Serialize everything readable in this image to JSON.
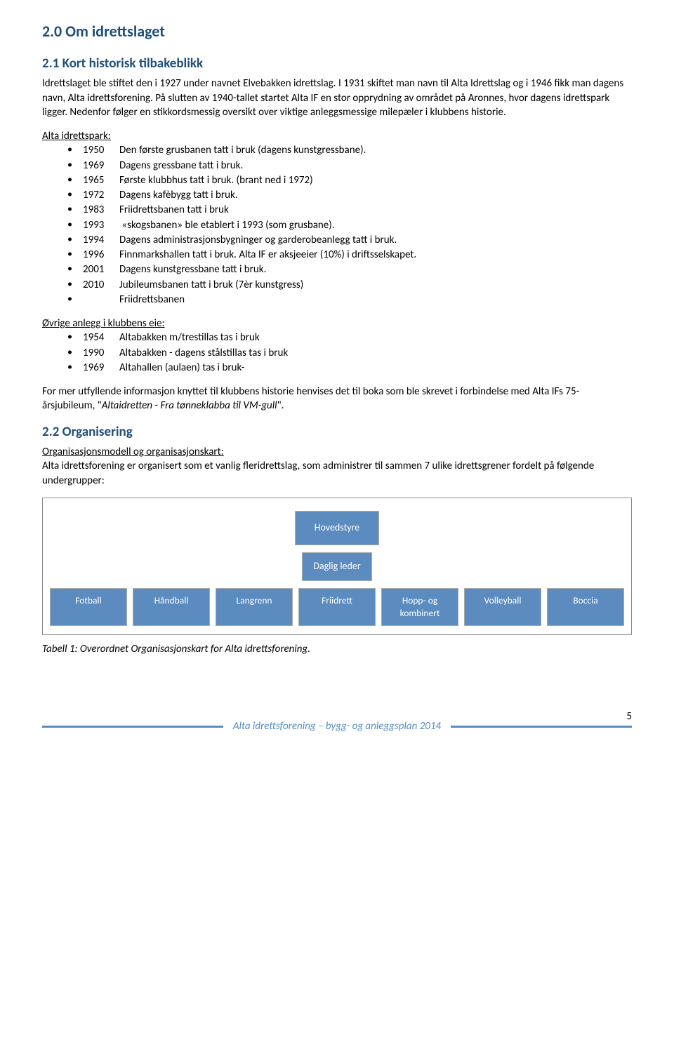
{
  "colors": {
    "heading": "#1f4e79",
    "box_bg": "#5b8bbf",
    "box_text": "#ffffff",
    "body_text": "#000000",
    "background": "#ffffff",
    "footer_accent": "#5b8bbf"
  },
  "section_main": {
    "heading": "2.0 Om idrettslaget"
  },
  "section_21": {
    "heading": "2.1 Kort historisk tilbakeblikk",
    "intro": "Idrettslaget ble stiftet den i 1927 under navnet Elvebakken idrettslag. I 1931 skiftet man navn til Alta Idrettslag og i 1946 fikk man dagens navn, Alta idrettsforening. På slutten av 1940-tallet startet Alta IF en stor opprydning av området på Aronnes, hvor dagens idrettspark ligger. Nedenfor følger en stikkordsmessig oversikt over viktige anleggsmessige milepæler i klubbens historie."
  },
  "park": {
    "label": "Alta idrettspark:",
    "items": [
      {
        "year": "1950",
        "text": "Den første grusbanen tatt i bruk (dagens kunstgressbane)."
      },
      {
        "year": "1969",
        "text": "Dagens gressbane tatt i bruk."
      },
      {
        "year": "1965",
        "text": "Første klubbhus tatt i bruk. (brant ned i 1972)"
      },
      {
        "year": "1972",
        "text": "Dagens kafèbygg tatt i bruk."
      },
      {
        "year": "1983",
        "text": "Friidrettsbanen tatt i bruk"
      },
      {
        "year": "1993",
        "text": " «skogsbanen» ble etablert i 1993 (som grusbane)."
      },
      {
        "year": "1994",
        "text": "Dagens administrasjonsbygninger og garderobeanlegg  tatt i bruk."
      },
      {
        "year": "1996",
        "text": "Finnmarkshallen tatt i bruk. Alta IF er aksjeeier  (10%) i driftsselskapet."
      },
      {
        "year": "2001",
        "text": "Dagens kunstgressbane tatt i bruk."
      },
      {
        "year": "2010",
        "text": "Jubileumsbanen tatt i bruk (7èr kunstgress)"
      },
      {
        "year": "",
        "text": "Friidrettsbanen"
      }
    ]
  },
  "other": {
    "label": "Øvrige anlegg i klubbens eie:",
    "items": [
      {
        "year": "1954",
        "text": "Altabakken m/trestillas tas i bruk"
      },
      {
        "year": "1990",
        "text": "Altabakken - dagens stålstillas tas i bruk"
      },
      {
        "year": "1969",
        "text": "Altahallen (aulaen) tas i bruk-"
      }
    ]
  },
  "closing_para_pre": "For mer utfyllende informasjon knyttet til klubbens historie henvises det til boka som ble skrevet i forbindelse med Alta IFs 75-årsjubileum, \"",
  "closing_para_italic": "Altaidretten - Fra tønneklabba til VM-gull",
  "closing_para_post": "\".",
  "section_22": {
    "heading": "2.2 Organisering",
    "subhead": "Organisasjonsmodell og organisasjonskart:",
    "text": "Alta idrettsforening er organisert som et vanlig fleridrettslag, som administrer til sammen 7 ulike idrettsgrener fordelt på følgende undergrupper:"
  },
  "org": {
    "top": "Hovedstyre",
    "mid": "Daglig leder",
    "bottom": [
      "Fotball",
      "Håndball",
      "Langrenn",
      "Friidrett",
      "Hopp- og kombinert",
      "Volleyball",
      "Boccia"
    ]
  },
  "caption": "Tabell 1: Overordnet Organisasjonskart for Alta idrettsforening.",
  "footer": {
    "text": "Alta idrettsforening – bygg- og anleggsplan 2014",
    "page": "5"
  }
}
